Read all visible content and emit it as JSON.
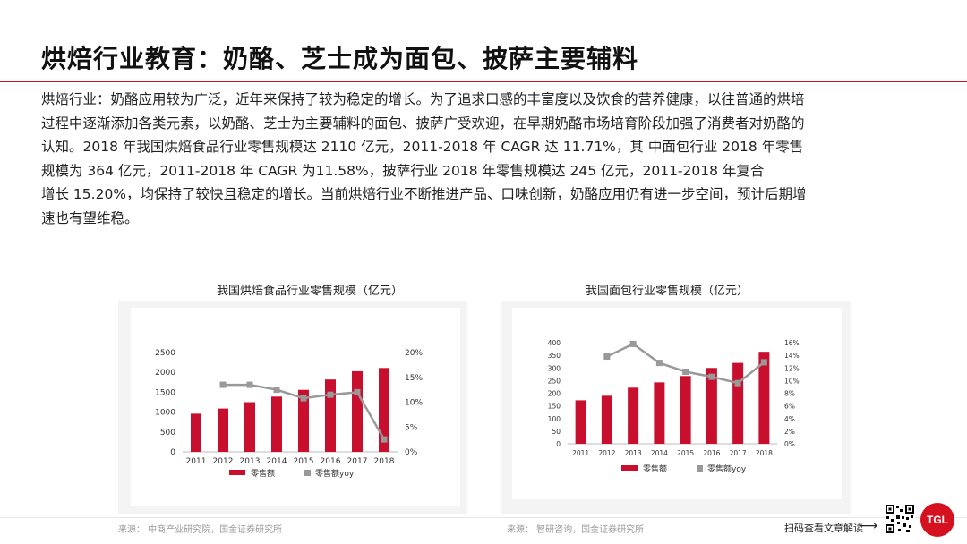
{
  "header": {
    "title": "烘焙行业教育：奶酪、芝士成为面包、披萨主要辅料"
  },
  "paragraph": {
    "lines": [
      "烘焙行业：奶酪应用较为广泛，近年来保持了较为稳定的增长。为了追求口感的丰富度以及饮食的营养健康，以往普通的烘培",
      "过程中逐渐添加各类元素，以奶酪、芝士为主要辅料的面包、披萨广受欢迎，在早期奶酪市场培育阶段加强了消费者对奶酪的",
      "认知。2018 年我国烘焙食品行业零售规模达 2110 亿元，2011-2018 年 CAGR 达 11.71%，其 中面包行业 2018 年零售",
      "规模为 364 亿元，2011-2018 年 CAGR 为11.58%，披萨行业 2018 年零售规模达 245 亿元，2011-2018 年复合",
      "增长 15.20%，均保持了较快且稳定的增长。当前烘焙行业不断推进产品、口味创新，奶酪应用仍有进一步空间，预计后期增",
      "速也有望维稳。"
    ]
  },
  "chart_data": [
    {
      "type": "bar",
      "title": "我国烘焙食品行业零售规模（亿元）",
      "categories": [
        "2011",
        "2012",
        "2013",
        "2014",
        "2015",
        "2016",
        "2017",
        "2018"
      ],
      "series": [
        {
          "name": "零售额",
          "type": "bar",
          "axis": "left",
          "color": "#c8102e",
          "values": [
            960,
            1090,
            1250,
            1390,
            1560,
            1820,
            2030,
            2110
          ]
        },
        {
          "name": "零售额yoy",
          "type": "line",
          "axis": "right",
          "color": "#999999",
          "values": [
            null,
            13.5,
            13.5,
            12.5,
            10.8,
            11.5,
            12.0,
            2.5
          ]
        }
      ],
      "y_left": {
        "min": 0,
        "max": 2500,
        "ticks": [
          "0",
          "500",
          "1000",
          "1500",
          "2000",
          "2500"
        ]
      },
      "y_right": {
        "min": 0,
        "max": 20,
        "ticks": [
          "0%",
          "5%",
          "10%",
          "15%",
          "20%"
        ]
      },
      "legend": "bottom",
      "source": "来源：  中商产业研究院，国金证券研究所"
    },
    {
      "type": "bar",
      "title": "我国面包行业零售规模（亿元）",
      "categories": [
        "2011",
        "2012",
        "2013",
        "2014",
        "2015",
        "2016",
        "2017",
        "2018"
      ],
      "series": [
        {
          "name": "零售额",
          "type": "bar",
          "axis": "left",
          "color": "#c8102e",
          "values": [
            172,
            190,
            222,
            243,
            268,
            300,
            320,
            364
          ]
        },
        {
          "name": "零售额yoy",
          "type": "line",
          "axis": "right",
          "color": "#999999",
          "values": [
            null,
            13.8,
            15.8,
            12.8,
            11.4,
            10.6,
            9.6,
            12.9
          ]
        }
      ],
      "y_left": {
        "min": 0,
        "max": 400,
        "ticks": [
          "0",
          "50",
          "100",
          "150",
          "200",
          "250",
          "300",
          "350",
          "400"
        ]
      },
      "y_right": {
        "min": 0,
        "max": 16,
        "ticks": [
          "0%",
          "2%",
          "4%",
          "6%",
          "8%",
          "10%",
          "12%",
          "14%",
          "16%"
        ]
      },
      "legend": "bottom",
      "source": "来源：  智研咨询，国金证券研究所"
    }
  ],
  "footer": {
    "scan_text": "扫码查看文章解读",
    "arrow": "⟶",
    "logo_text": "TGL"
  }
}
